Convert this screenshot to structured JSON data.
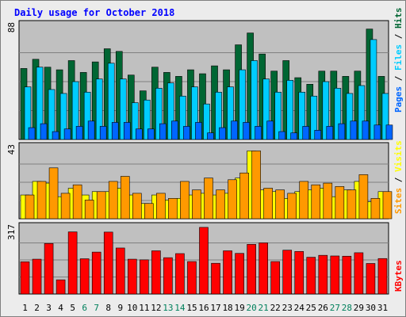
{
  "colors": {
    "background": "#ececec",
    "panel": "#c0c0c0",
    "title": "#0000ff",
    "hits": "#006633",
    "files": "#00ccff",
    "pages": "#0066ff",
    "visits": "#ffff00",
    "sites": "#ff9900",
    "kbytes": "#ff0000",
    "weekend_day": "#00805c",
    "weekday": "#000000"
  },
  "chart_data": {
    "type": "bar",
    "title": "Daily usage for October 2018",
    "days": [
      "1",
      "2",
      "3",
      "4",
      "5",
      "6",
      "7",
      "8",
      "9",
      "10",
      "11",
      "12",
      "13",
      "14",
      "15",
      "16",
      "17",
      "18",
      "19",
      "20",
      "21",
      "22",
      "23",
      "24",
      "25",
      "26",
      "27",
      "28",
      "29",
      "30",
      "31"
    ],
    "weekend_days": [
      "6",
      "7",
      "13",
      "14",
      "20",
      "21",
      "27",
      "28"
    ],
    "panels": [
      {
        "id": "hits-panel",
        "max_label": "88",
        "ylim": [
          0,
          88
        ],
        "series": [
          {
            "name": "Hits",
            "values": [
              54,
              61,
              55,
              53,
              60,
              51,
              59,
              69,
              67,
              49,
              37,
              55,
              51,
              48,
              53,
              50,
              56,
              53,
              72,
              81,
              65,
              52,
              60,
              47,
              42,
              52,
              52,
              48,
              52,
              84,
              48
            ]
          },
          {
            "name": "Files",
            "values": [
              40,
              55,
              38,
              35,
              44,
              36,
              46,
              58,
              46,
              28,
              30,
              39,
              43,
              33,
              40,
              27,
              36,
              40,
              53,
              60,
              46,
              36,
              45,
              36,
              33,
              44,
              39,
              35,
              41,
              76,
              35
            ]
          },
          {
            "name": "Pages",
            "values": [
              9,
              12,
              6,
              8,
              10,
              14,
              10,
              13,
              13,
              8,
              8,
              12,
              14,
              10,
              13,
              5,
              9,
              14,
              13,
              10,
              14,
              6,
              5,
              10,
              7,
              10,
              12,
              14,
              14,
              11,
              11
            ]
          }
        ]
      },
      {
        "id": "visits-panel",
        "max_label": "43",
        "ylim": [
          0,
          43
        ],
        "series": [
          {
            "name": "Visits",
            "values": [
              14,
              22,
              21,
              13,
              18,
              14,
              16,
              16,
              18,
              14,
              9,
              14,
              11,
              12,
              14,
              15,
              14,
              15,
              24,
              40,
              17,
              16,
              12,
              16,
              17,
              18,
              13,
              17,
              22,
              10,
              16
            ]
          },
          {
            "name": "Sites",
            "values": [
              14,
              22,
              30,
              15,
              20,
              11,
              16,
              22,
              25,
              15,
              9,
              15,
              12,
              22,
              17,
              24,
              17,
              23,
              27,
              40,
              18,
              17,
              15,
              22,
              20,
              21,
              19,
              17,
              26,
              12,
              16
            ]
          }
        ]
      },
      {
        "id": "kbytes-panel",
        "max_label": "317",
        "ylim": [
          0,
          317
        ],
        "series": [
          {
            "name": "KBytes",
            "values": [
              150,
              162,
              235,
              66,
              289,
              164,
              195,
              288,
              214,
              162,
              159,
              201,
              169,
              188,
              151,
              310,
              143,
              201,
              189,
              231,
              238,
              151,
              204,
              198,
              171,
              180,
              177,
              176,
              192,
              142,
              165
            ]
          }
        ]
      }
    ],
    "right_labels": [
      {
        "panel": "hits-panel",
        "parts": [
          "Pages",
          " / ",
          "Files",
          " / ",
          "Hits"
        ]
      },
      {
        "panel": "visits-panel",
        "parts": [
          "Sites",
          " / ",
          "Visits"
        ]
      },
      {
        "panel": "kbytes-panel",
        "parts": [
          "KBytes"
        ]
      }
    ]
  }
}
